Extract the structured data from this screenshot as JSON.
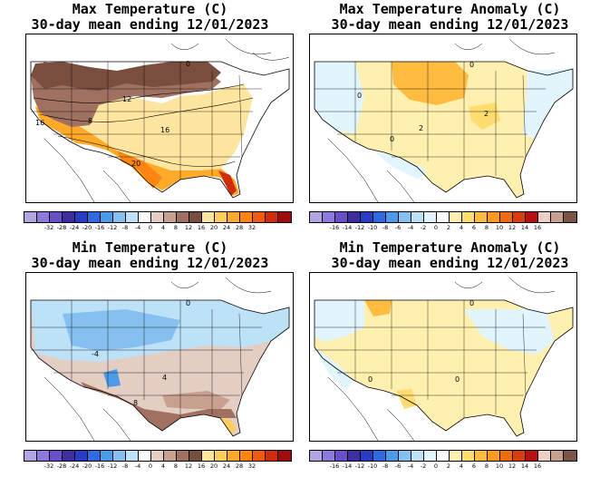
{
  "panels": [
    {
      "id": "max-temp",
      "title": "Max Temperature (C)",
      "subtitle": "30-day mean ending 12/01/2023",
      "colorbar": {
        "colors": [
          "#b4a4e4",
          "#8e7adc",
          "#6a4fc8",
          "#3e2ea0",
          "#2a3cc4",
          "#2f6ae0",
          "#4d9ae8",
          "#86c0f0",
          "#bde2f8",
          "#ffffff",
          "#e4cec4",
          "#c8a090",
          "#a07060",
          "#7a4e3e",
          "#ffe6a0",
          "#ffce5c",
          "#ffaa28",
          "#ff8410",
          "#f05a10",
          "#d02c0c",
          "#a00c0c"
        ],
        "ticks": [
          "-32",
          "-28",
          "-24",
          "-20",
          "-16",
          "-12",
          "-8",
          "-4",
          "0",
          "4",
          "8",
          "12",
          "16",
          "20",
          "24",
          "28",
          "32"
        ]
      },
      "contour_labels": [
        "16",
        "8",
        "12",
        "16",
        "20",
        "0"
      ]
    },
    {
      "id": "max-temp-anomaly",
      "title": "Max Temperature Anomaly (C)",
      "subtitle": "30-day mean ending 12/01/2023",
      "colorbar": {
        "colors": [
          "#b4a4e4",
          "#8e7adc",
          "#6a4fc8",
          "#3e2ea0",
          "#2a3cc4",
          "#2f6ae0",
          "#4d9ae8",
          "#86c0f0",
          "#bde2f8",
          "#e2f4fc",
          "#ffffff",
          "#fff0b0",
          "#ffdc70",
          "#ffbc40",
          "#ff9a20",
          "#f06a10",
          "#d83e10",
          "#b81010",
          "#ecd0c4",
          "#c8a090",
          "#7a5446"
        ],
        "ticks": [
          "-16",
          "-14",
          "-12",
          "-10",
          "-8",
          "-6",
          "-4",
          "-2",
          "0",
          "2",
          "4",
          "6",
          "8",
          "10",
          "12",
          "14",
          "16"
        ]
      },
      "contour_labels": [
        "0",
        "0",
        "2",
        "2",
        "0"
      ]
    },
    {
      "id": "min-temp",
      "title": "Min Temperature (C)",
      "subtitle": "30-day mean ending 12/01/2023",
      "colorbar": {
        "colors": [
          "#b4a4e4",
          "#8e7adc",
          "#6a4fc8",
          "#3e2ea0",
          "#2a3cc4",
          "#2f6ae0",
          "#4d9ae8",
          "#86c0f0",
          "#bde2f8",
          "#ffffff",
          "#e4cec4",
          "#c8a090",
          "#a07060",
          "#7a4e3e",
          "#ffe6a0",
          "#ffce5c",
          "#ffaa28",
          "#ff8410",
          "#f05a10",
          "#d02c0c",
          "#a00c0c"
        ],
        "ticks": [
          "-32",
          "-28",
          "-24",
          "-20",
          "-16",
          "-12",
          "-8",
          "-4",
          "0",
          "4",
          "8",
          "12",
          "16",
          "20",
          "24",
          "28",
          "32"
        ]
      },
      "contour_labels": [
        "-4",
        "0",
        "4",
        "8"
      ]
    },
    {
      "id": "min-temp-anomaly",
      "title": "Min Temperature Anomaly (C)",
      "subtitle": "30-day mean ending 12/01/2023",
      "colorbar": {
        "colors": [
          "#b4a4e4",
          "#8e7adc",
          "#6a4fc8",
          "#3e2ea0",
          "#2a3cc4",
          "#2f6ae0",
          "#4d9ae8",
          "#86c0f0",
          "#bde2f8",
          "#e2f4fc",
          "#ffffff",
          "#fff0b0",
          "#ffdc70",
          "#ffbc40",
          "#ff9a20",
          "#f06a10",
          "#d83e10",
          "#b81010",
          "#ecd0c4",
          "#c8a090",
          "#7a5446"
        ],
        "ticks": [
          "-16",
          "-14",
          "-12",
          "-10",
          "-8",
          "-6",
          "-4",
          "-2",
          "0",
          "2",
          "4",
          "6",
          "8",
          "10",
          "12",
          "14",
          "16"
        ]
      },
      "contour_labels": [
        "0",
        "0",
        "0"
      ]
    }
  ]
}
